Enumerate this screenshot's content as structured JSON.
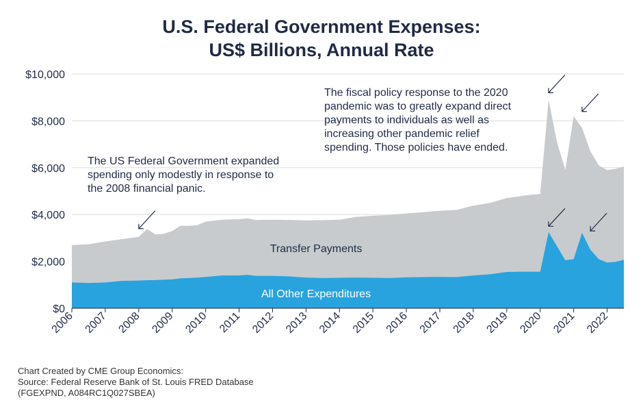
{
  "title": {
    "line1": "U.S. Federal Government Expenses:",
    "line2": "US$ Billions, Annual Rate"
  },
  "footer": {
    "line1": "Chart Created by CME Group Economics:",
    "line2": "Source: Federal Reserve Bank of St. Louis FRED Database",
    "line3": "(FGEXPND, A084RC1Q027SBEA)"
  },
  "colors": {
    "total_area": "#c7cbce",
    "other_area": "#29a3de",
    "text": "#1f2a44",
    "grid": "#dddddd"
  },
  "chart_data": {
    "type": "area",
    "title": "U.S. Federal Government Expenses: US$ Billions, Annual Rate",
    "xlabel": "",
    "ylabel": "",
    "ylim": [
      0,
      10000
    ],
    "xlim": [
      2006.0,
      2022.5
    ],
    "yticks": [
      0,
      2000,
      4000,
      6000,
      8000,
      10000
    ],
    "ytick_labels": [
      "$0",
      "$2,000",
      "$4,000",
      "$6,000",
      "$8,000",
      "$10,000"
    ],
    "xticks": [
      "2006",
      "2007",
      "2008",
      "2009",
      "2010",
      "2011",
      "2012",
      "2013",
      "2014",
      "2015",
      "2016",
      "2017",
      "2018",
      "2019",
      "2020",
      "2021",
      "2022"
    ],
    "x": [
      2006.0,
      2006.5,
      2007.0,
      2007.5,
      2008.0,
      2008.25,
      2008.5,
      2008.75,
      2009.0,
      2009.25,
      2009.5,
      2009.75,
      2010.0,
      2010.5,
      2011.0,
      2011.25,
      2011.5,
      2012.0,
      2012.5,
      2013.0,
      2013.5,
      2014.0,
      2014.5,
      2015.0,
      2015.5,
      2016.0,
      2016.5,
      2017.0,
      2017.5,
      2018.0,
      2018.5,
      2019.0,
      2019.5,
      2019.75,
      2020.0,
      2020.25,
      2020.5,
      2020.75,
      2021.0,
      2021.25,
      2021.5,
      2021.75,
      2022.0,
      2022.25,
      2022.5
    ],
    "series": [
      {
        "name": "Transfer Payments",
        "role": "total_expenses",
        "values": [
          2700,
          2730,
          2850,
          2950,
          3050,
          3380,
          3150,
          3180,
          3300,
          3520,
          3520,
          3550,
          3700,
          3780,
          3800,
          3840,
          3770,
          3780,
          3770,
          3750,
          3760,
          3780,
          3900,
          3950,
          3980,
          4050,
          4100,
          4160,
          4200,
          4380,
          4500,
          4700,
          4800,
          4850,
          4880,
          8900,
          7100,
          5900,
          8200,
          7700,
          6700,
          6100,
          5900,
          5950,
          6050
        ]
      },
      {
        "name": "All Other Expenditures",
        "role": "other",
        "values": [
          1100,
          1080,
          1100,
          1170,
          1180,
          1200,
          1200,
          1220,
          1230,
          1280,
          1290,
          1310,
          1340,
          1400,
          1400,
          1430,
          1380,
          1380,
          1360,
          1310,
          1290,
          1300,
          1310,
          1300,
          1290,
          1320,
          1330,
          1340,
          1330,
          1400,
          1450,
          1550,
          1560,
          1560,
          1560,
          3250,
          2650,
          2050,
          2100,
          3220,
          2500,
          2100,
          1950,
          1980,
          2070
        ]
      }
    ],
    "area_labels": {
      "transfer": "Transfer Payments",
      "other": "All Other Expenditures"
    },
    "annotations": {
      "left": [
        "The US Federal Government expanded",
        "spending only modestly in response to",
        "the 2008 financial panic."
      ],
      "right": [
        "The fiscal policy response to the 2020",
        "pandemic was to greatly expand direct",
        "payments to individuals as well as",
        "increasing other pandemic relief",
        "spending.  Those policies have ended."
      ]
    },
    "arrows": [
      {
        "target": "2008 spike",
        "x": 2008.0,
        "y": 3400
      },
      {
        "target": "2020 total spike",
        "x": 2020.25,
        "y": 9200
      },
      {
        "target": "2021 total spike",
        "x": 2021.25,
        "y": 8400
      },
      {
        "target": "2020 other spike",
        "x": 2020.25,
        "y": 3500
      },
      {
        "target": "2021 other spike",
        "x": 2021.5,
        "y": 3300
      }
    ]
  }
}
